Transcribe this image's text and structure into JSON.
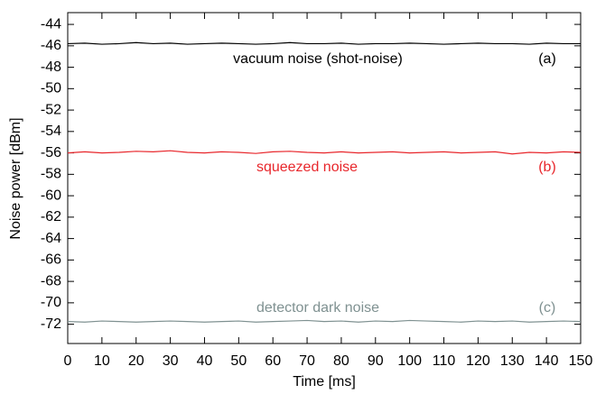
{
  "chart_data": {
    "type": "line",
    "xlabel": "Time [ms]",
    "ylabel": "Noise power [dBm]",
    "x": [
      0,
      5,
      10,
      15,
      20,
      25,
      30,
      35,
      40,
      45,
      50,
      55,
      60,
      65,
      70,
      75,
      80,
      85,
      90,
      95,
      100,
      105,
      110,
      115,
      120,
      125,
      130,
      135,
      140,
      145,
      150
    ],
    "series": [
      {
        "name": "vacuum noise (shot-noise)",
        "color": "#000000",
        "values": [
          -45.8,
          -45.75,
          -45.85,
          -45.8,
          -45.7,
          -45.8,
          -45.75,
          -45.85,
          -45.8,
          -45.75,
          -45.8,
          -45.85,
          -45.8,
          -45.7,
          -45.8,
          -45.8,
          -45.75,
          -45.85,
          -45.8,
          -45.8,
          -45.75,
          -45.8,
          -45.85,
          -45.8,
          -45.75,
          -45.8,
          -45.8,
          -45.85,
          -45.75,
          -45.8,
          -45.8
        ]
      },
      {
        "name": "squeezed noise",
        "color": "#e8262b",
        "values": [
          -56.0,
          -55.9,
          -56.0,
          -55.95,
          -55.85,
          -55.9,
          -55.8,
          -55.95,
          -56.0,
          -55.9,
          -55.95,
          -56.05,
          -55.9,
          -55.85,
          -55.95,
          -56.0,
          -55.9,
          -56.0,
          -55.95,
          -55.9,
          -56.0,
          -55.95,
          -55.9,
          -56.0,
          -55.95,
          -55.9,
          -56.1,
          -55.95,
          -56.0,
          -55.9,
          -55.95
        ]
      },
      {
        "name": "detector dark noise",
        "color": "#7f9191",
        "values": [
          -71.75,
          -71.8,
          -71.7,
          -71.75,
          -71.8,
          -71.75,
          -71.7,
          -71.75,
          -71.8,
          -71.75,
          -71.7,
          -71.8,
          -71.75,
          -71.7,
          -71.65,
          -71.75,
          -71.7,
          -71.8,
          -71.7,
          -71.75,
          -71.65,
          -71.7,
          -71.75,
          -71.8,
          -71.7,
          -71.75,
          -71.7,
          -71.8,
          -71.75,
          -71.7,
          -71.75
        ]
      }
    ],
    "annotations": [
      {
        "text": "vacuum noise (shot-noise)",
        "color": "#000000"
      },
      {
        "text": "(a)",
        "color": "#000000"
      },
      {
        "text": "squeezed noise",
        "color": "#e8262b"
      },
      {
        "text": "(b)",
        "color": "#e8262b"
      },
      {
        "text": "detector dark noise",
        "color": "#7f9191"
      },
      {
        "text": "(c)",
        "color": "#7f9191"
      }
    ],
    "xlim": [
      0,
      150
    ],
    "xticks": [
      0,
      10,
      20,
      30,
      40,
      50,
      60,
      70,
      80,
      90,
      100,
      110,
      120,
      130,
      140,
      150
    ],
    "ylim": [
      -73.8,
      -42.9
    ],
    "yticks": [
      -44,
      -46,
      -48,
      -50,
      -52,
      -54,
      -56,
      -58,
      -60,
      -62,
      -64,
      -66,
      -68,
      -70,
      -72
    ],
    "grid": false
  }
}
